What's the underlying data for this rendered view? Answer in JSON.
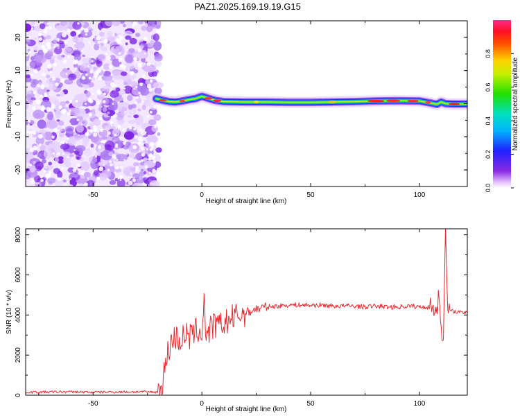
{
  "figure": {
    "title": "PAZ1.2025.169.19.19.G15"
  },
  "chart_data": [
    {
      "type": "heatmap",
      "title": "PAZ1.2025.169.19.19.G15",
      "xlabel": "Height of straight line (km)",
      "ylabel": "Frequency (Hz)",
      "xlim": [
        -81,
        122
      ],
      "ylim": [
        -25,
        25
      ],
      "x_ticks": [
        -50,
        0,
        50,
        100
      ],
      "y_ticks": [
        -20,
        -10,
        0,
        10,
        20
      ],
      "colorbar": {
        "label": "Normalized spectral amplitude",
        "ticks": [
          0.0,
          0.2,
          0.4,
          0.6,
          0.8
        ],
        "range": [
          0,
          1
        ],
        "colormap": "rainbow (magenta-blue-cyan-green-yellow-red-pink)"
      },
      "noise_region_x": [
        -81,
        -21
      ],
      "signal_ridge": {
        "x": [
          -21,
          -18,
          -15,
          -12,
          -9,
          -6,
          -3,
          0,
          3,
          6,
          10,
          20,
          30,
          40,
          50,
          60,
          70,
          80,
          90,
          100,
          105,
          108,
          110,
          112,
          115,
          122
        ],
        "frequency": [
          1.5,
          1.0,
          0.6,
          0.5,
          0.8,
          1.2,
          1.5,
          2.2,
          1.6,
          1.0,
          0.6,
          0.5,
          0.5,
          0.4,
          0.4,
          0.5,
          0.6,
          0.8,
          0.9,
          0.8,
          0.2,
          -0.2,
          0.5,
          0.0,
          -0.1,
          -0.1
        ]
      }
    },
    {
      "type": "line",
      "xlabel": "Height of straight line (km)",
      "ylabel": "SNR (10 * v/v)",
      "xlim": [
        -81,
        122
      ],
      "ylim": [
        0,
        8300
      ],
      "x_ticks": [
        -50,
        0,
        50,
        100
      ],
      "y_ticks": [
        0,
        2000,
        4000,
        6000,
        8000
      ],
      "series": [
        {
          "color": "#e8262a",
          "x": [
            -81,
            -70,
            -60,
            -50,
            -40,
            -30,
            -20,
            -18,
            -16,
            -14,
            -12,
            -10,
            -8,
            -6,
            -4,
            -2,
            0,
            1,
            2,
            4,
            6,
            8,
            10,
            12,
            15,
            20,
            25,
            30,
            35,
            40,
            45,
            50,
            55,
            60,
            65,
            70,
            75,
            80,
            85,
            90,
            95,
            100,
            105,
            108,
            109,
            110,
            111,
            112,
            113,
            115,
            118,
            122
          ],
          "y": [
            150,
            160,
            170,
            150,
            160,
            170,
            160,
            600,
            2000,
            2700,
            2900,
            2700,
            3000,
            2900,
            3000,
            3300,
            3000,
            4900,
            2800,
            3300,
            3500,
            3400,
            3600,
            3700,
            3900,
            4100,
            4300,
            4400,
            4450,
            4500,
            4500,
            4480,
            4500,
            4450,
            4450,
            4450,
            4400,
            4450,
            4400,
            4400,
            4450,
            4400,
            4400,
            4300,
            5000,
            3600,
            2500,
            8300,
            4200,
            4200,
            4150,
            4100
          ]
        }
      ]
    }
  ]
}
